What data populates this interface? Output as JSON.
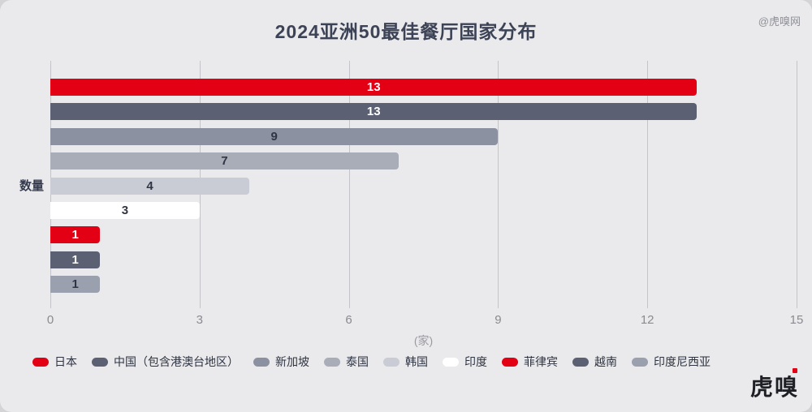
{
  "header": {
    "title": "2024亚洲50最佳餐厅国家分布",
    "watermark": "@虎嗅网"
  },
  "chart_data": {
    "type": "bar",
    "orientation": "horizontal",
    "title": "2024亚洲50最佳餐厅国家分布",
    "ylabel": "数量",
    "xlabel": "(家)",
    "xlim": [
      0,
      15
    ],
    "xticks": [
      0,
      3,
      6,
      9,
      12,
      15
    ],
    "grid": true,
    "legend_position": "bottom",
    "categories": [
      "日本",
      "中国（包含港澳台地区）",
      "新加坡",
      "泰国",
      "韩国",
      "印度",
      "菲律宾",
      "越南",
      "印度尼西亚"
    ],
    "values": [
      13,
      13,
      9,
      7,
      4,
      3,
      1,
      1,
      1
    ],
    "bar_colors": [
      "#e30015",
      "#5b6172",
      "#8c91a1",
      "#a9adb8",
      "#c9ccd5",
      "#ffffff",
      "#e30015",
      "#5b6172",
      "#9ba0af"
    ],
    "value_label_colors": [
      "#ffffff",
      "#ffffff",
      "#2f3545",
      "#2f3545",
      "#2f3545",
      "#2f3545",
      "#ffffff",
      "#ffffff",
      "#2f3545"
    ]
  },
  "footer": {
    "logo_text": "虎嗅"
  }
}
